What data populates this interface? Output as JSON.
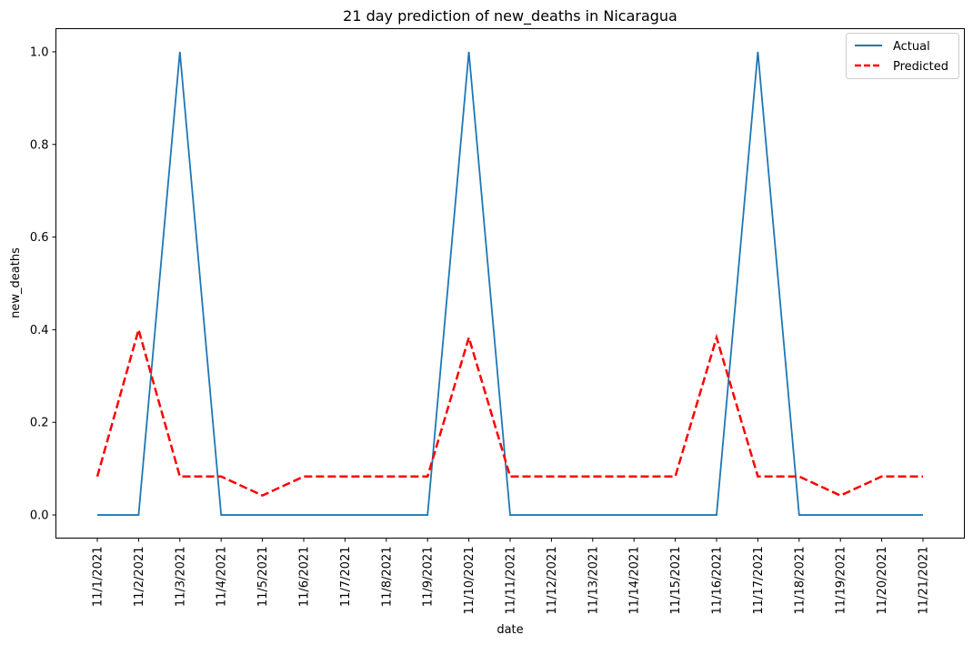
{
  "chart_data": {
    "type": "line",
    "title": "21 day prediction of new_deaths in Nicaragua",
    "xlabel": "date",
    "ylabel": "new_deaths",
    "categories": [
      "11/1/2021",
      "11/2/2021",
      "11/3/2021",
      "11/4/2021",
      "11/5/2021",
      "11/6/2021",
      "11/7/2021",
      "11/8/2021",
      "11/9/2021",
      "11/10/2021",
      "11/11/2021",
      "11/12/2021",
      "11/13/2021",
      "11/14/2021",
      "11/15/2021",
      "11/16/2021",
      "11/17/2021",
      "11/18/2021",
      "11/19/2021",
      "11/20/2021",
      "11/21/2021"
    ],
    "ylim": [
      -0.05,
      1.05
    ],
    "yticks": [
      "0.0",
      "0.2",
      "0.4",
      "0.6",
      "0.8",
      "1.0"
    ],
    "grid": false,
    "legend_position": "top-right",
    "series": [
      {
        "name": "Actual",
        "color": "#1f77b4",
        "style": "solid",
        "values": [
          0,
          0,
          1,
          0,
          0,
          0,
          0,
          0,
          0,
          1,
          0,
          0,
          0,
          0,
          0,
          0,
          1,
          0,
          0,
          0,
          0
        ]
      },
      {
        "name": "Predicted",
        "color": "#ff0000",
        "style": "dashed",
        "values": [
          0.083,
          0.4,
          0.083,
          0.083,
          0.042,
          0.083,
          0.083,
          0.083,
          0.083,
          0.383,
          0.083,
          0.083,
          0.083,
          0.083,
          0.083,
          0.383,
          0.083,
          0.083,
          0.042,
          0.083,
          0.083
        ]
      }
    ]
  }
}
